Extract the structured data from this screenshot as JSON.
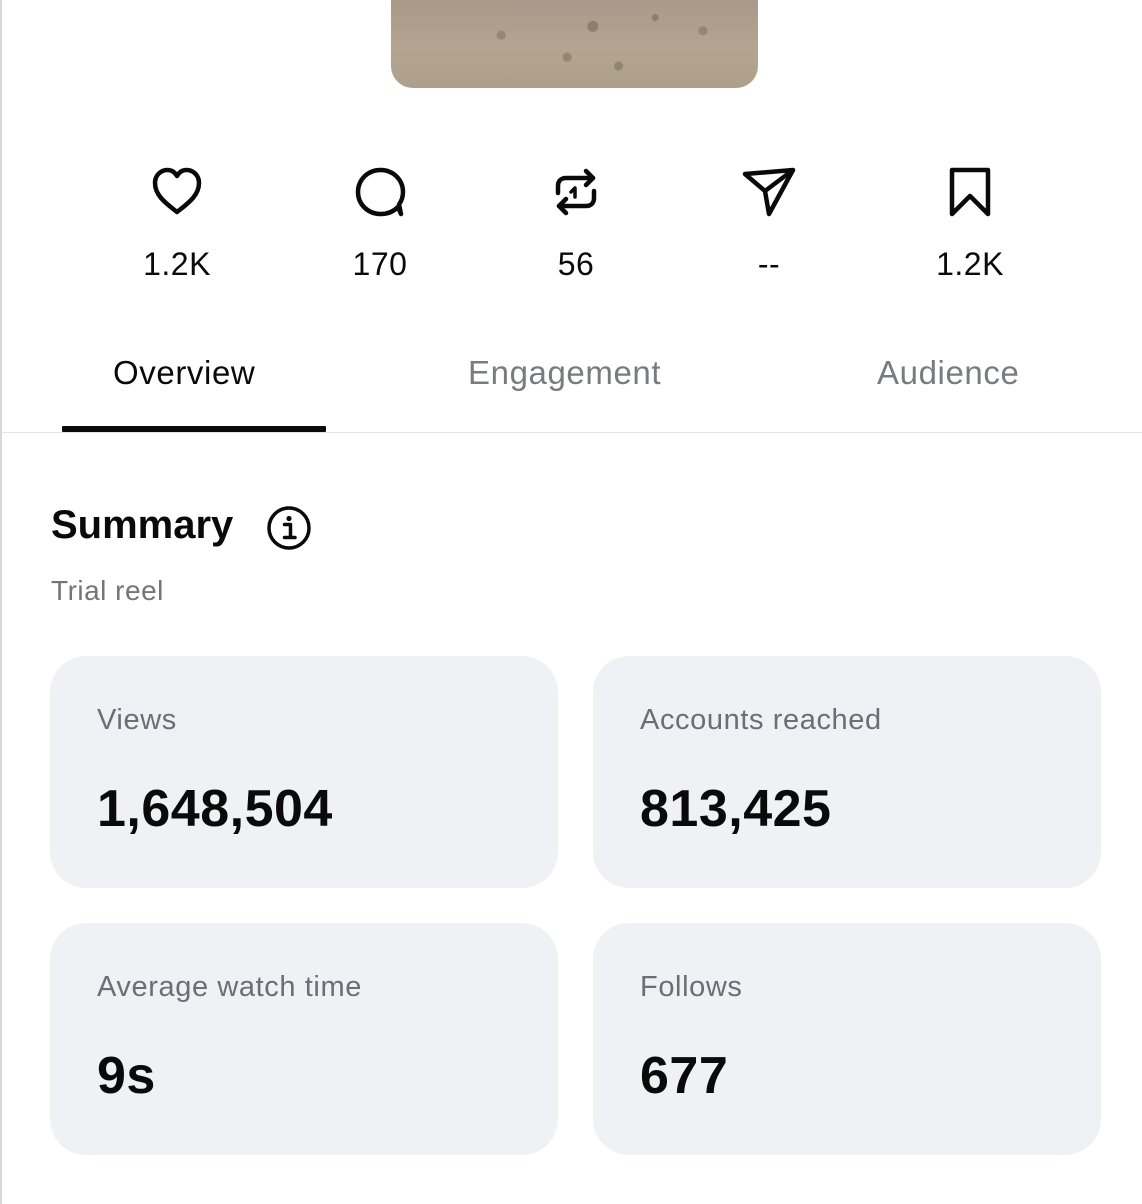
{
  "stats": [
    {
      "icon": "heart-icon",
      "value": "1.2K"
    },
    {
      "icon": "comment-icon",
      "value": "170"
    },
    {
      "icon": "repost-icon",
      "value": "56"
    },
    {
      "icon": "share-icon",
      "value": "--"
    },
    {
      "icon": "bookmark-icon",
      "value": "1.2K"
    }
  ],
  "tabs": [
    {
      "label": "Overview",
      "active": true
    },
    {
      "label": "Engagement",
      "active": false
    },
    {
      "label": "Audience",
      "active": false
    }
  ],
  "summary": {
    "title": "Summary",
    "subtitle": "Trial reel"
  },
  "cards": [
    {
      "label": "Views",
      "value": "1,648,504"
    },
    {
      "label": "Accounts reached",
      "value": "813,425"
    },
    {
      "label": "Average watch time",
      "value": "9s"
    },
    {
      "label": "Follows",
      "value": "677"
    }
  ],
  "colors": {
    "card_bg": "#eff1f5",
    "muted_text": "#74757a",
    "primary_text": "#0a0a0a"
  }
}
